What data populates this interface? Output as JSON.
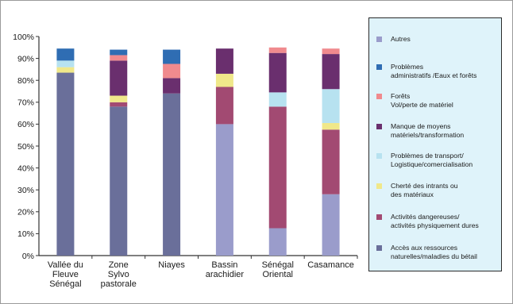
{
  "chart_data": {
    "type": "bar",
    "stacked": true,
    "categories": [
      [
        "Vallée du",
        "Fleuve",
        "Sénégal"
      ],
      [
        "Zone",
        "Sylvo",
        "pastorale"
      ],
      [
        "Niayes"
      ],
      [
        "Bassin",
        "arachidier"
      ],
      [
        "Sénégal",
        "Oriental"
      ],
      [
        "Casamance"
      ]
    ],
    "yticks": [
      "0%",
      "10%",
      "20%",
      "30%",
      "40%",
      "50%",
      "60%",
      "70%",
      "80%",
      "90%",
      "100%"
    ],
    "ylim": [
      0,
      100
    ],
    "grid": false,
    "legend_position": "right",
    "series": [
      {
        "name": "Accès aux ressources naturelles/maladies du bétail",
        "color": "#6a6f9a",
        "values": [
          83.5,
          68,
          74,
          0,
          0,
          0
        ]
      },
      {
        "name": "Activités dangereuses/ activités physiquement dures",
        "color": "#a24a72",
        "values": [
          0,
          2,
          0,
          17,
          55.5,
          29.5
        ]
      },
      {
        "name": "Cherté des intrants ou des matériaux",
        "color": "#f0e88a",
        "values": [
          2.5,
          3,
          0,
          6,
          0,
          3
        ]
      },
      {
        "name": "Problèmes de transport/ Logistique/comercialisation",
        "color": "#b7e2f0",
        "values": [
          3,
          0,
          0,
          0,
          6.5,
          15.5
        ]
      },
      {
        "name": "Manque de moyens matériels/transformation",
        "color": "#6a2f6e",
        "values": [
          0,
          16,
          7,
          11.5,
          18,
          16
        ]
      },
      {
        "name": "Forêts Vol/perte de matériel",
        "color": "#f08a8e",
        "values": [
          0,
          2.5,
          6.5,
          0,
          2.5,
          2.5
        ]
      },
      {
        "name": "Problèmes administratifs /Eaux et forêts",
        "color": "#2f6db3",
        "values": [
          5.5,
          2.5,
          6.5,
          0,
          0,
          0
        ]
      },
      {
        "name": "Autres",
        "color": "#9a9ccb",
        "values": [
          0,
          0,
          0,
          60,
          12.5,
          28
        ]
      }
    ],
    "stack_order_bottom_to_top": [
      [
        0,
        2,
        3,
        6
      ],
      [
        0,
        1,
        2,
        4,
        5,
        6
      ],
      [
        0,
        4,
        5,
        6
      ],
      [
        7,
        1,
        2,
        4
      ],
      [
        7,
        1,
        3,
        4,
        5
      ],
      [
        7,
        1,
        2,
        3,
        4,
        5
      ]
    ]
  },
  "legend": {
    "items": [
      {
        "lines": [
          "Autres"
        ],
        "color": "#9a9ccb"
      },
      {
        "lines": [
          "Problèmes",
          "administratifs /Eaux et forêts"
        ],
        "color": "#2f6db3"
      },
      {
        "lines": [
          "Forêts",
          "Vol/perte de matériel"
        ],
        "color": "#f08a8e"
      },
      {
        "lines": [
          "Manque de moyens",
          "matériels/transformation"
        ],
        "color": "#6a2f6e"
      },
      {
        "lines": [
          "Problèmes de transport/",
          "Logistique/comercialisation"
        ],
        "color": "#b7e2f0"
      },
      {
        "lines": [
          "Cherté des intrants ou",
          "des matériaux"
        ],
        "color": "#f0e88a"
      },
      {
        "lines": [
          "Activités dangereuses/",
          "activités physiquement dures"
        ],
        "color": "#a24a72"
      },
      {
        "lines": [
          "Accès aux ressources",
          "naturelles/maladies du bétail"
        ],
        "color": "#6a6f9a"
      }
    ]
  }
}
